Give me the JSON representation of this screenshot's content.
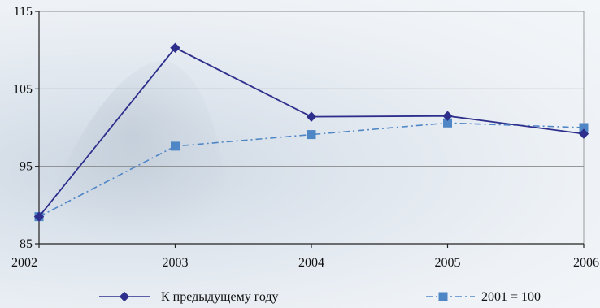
{
  "chart_data": {
    "type": "line",
    "categories": [
      "2002",
      "2003",
      "2004",
      "2005",
      "2006"
    ],
    "ylim": [
      85,
      115
    ],
    "yticks": [
      85,
      95,
      105,
      115
    ],
    "grid": true,
    "legend_position": "bottom",
    "series": [
      {
        "name": "К предыдущему году",
        "values": [
          88.5,
          110.3,
          101.4,
          101.5,
          99.2
        ],
        "color": "#2e2f8c",
        "marker": "diamond",
        "line_style": "solid"
      },
      {
        "name": "2001 = 100",
        "values": [
          88.5,
          97.6,
          99.1,
          100.6,
          100.0
        ],
        "color": "#4f86c6",
        "marker": "square",
        "line_style": "dash-dot"
      }
    ]
  }
}
